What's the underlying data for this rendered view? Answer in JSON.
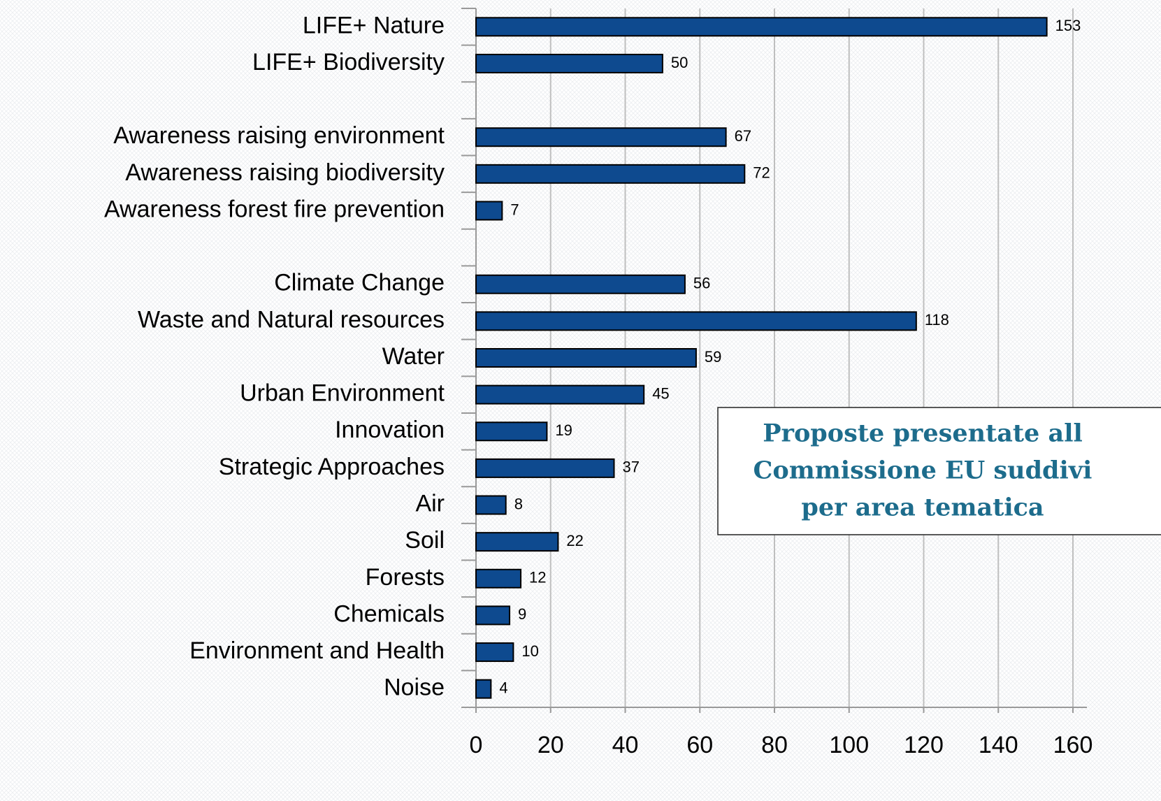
{
  "chart_data": {
    "type": "bar",
    "orientation": "horizontal",
    "categories": [
      "LIFE+ Nature",
      "LIFE+ Biodiversity",
      null,
      "Awareness raising environment",
      "Awareness raising biodiversity",
      "Awareness forest fire prevention",
      null,
      "Climate Change",
      "Waste and Natural resources",
      "Water",
      "Urban Environment",
      "Innovation",
      "Strategic Approaches",
      "Air",
      "Soil",
      "Forests",
      "Chemicals",
      "Environment and Health",
      "Noise"
    ],
    "values": [
      153,
      50,
      null,
      67,
      72,
      7,
      null,
      56,
      118,
      59,
      45,
      19,
      37,
      8,
      22,
      12,
      9,
      10,
      4
    ],
    "color": "#0e4a8f",
    "xlim": [
      0,
      160
    ],
    "xticks": [
      0,
      20,
      40,
      60,
      80,
      100,
      120,
      140,
      160
    ],
    "grid": true,
    "annotation": [
      "Proposte presentate all",
      "Commissione EU suddivi",
      "per area tematica"
    ]
  }
}
